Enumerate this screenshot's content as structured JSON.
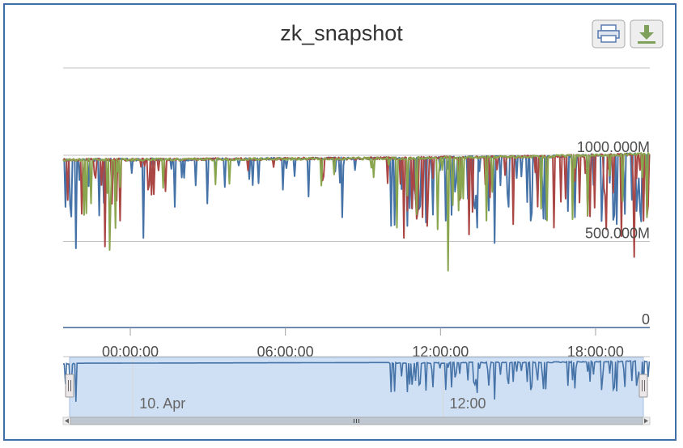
{
  "colors": {
    "series_blue": "#4572a7",
    "series_red": "#aa4643",
    "series_green": "#89a54e",
    "navigator_fill": "#c8daf2",
    "frame_border": "#3f6fa8"
  },
  "icons": {
    "print": "print-icon",
    "download": "download-icon"
  },
  "chart_data": {
    "type": "line",
    "title": "zk_snapshot",
    "xlabel": "",
    "ylabel": "",
    "ylim": [
      0,
      1000
    ],
    "y_unit": "M",
    "y_ticks": [
      {
        "value": 0,
        "label": "0"
      },
      {
        "value": 500,
        "label": "500.000M"
      },
      {
        "value": 1000,
        "label": "1000.000M"
      }
    ],
    "x_range_hours": [
      -2.6,
      20.1
    ],
    "x_ticks": [
      {
        "hour": 0,
        "label": "00:00:00"
      },
      {
        "hour": 6,
        "label": "06:00:00"
      },
      {
        "hour": 12,
        "label": "12:00:00"
      },
      {
        "hour": 18,
        "label": "18:00:00"
      }
    ],
    "grid": true,
    "legend": "none",
    "baseline": [
      {
        "hour": -2.6,
        "value": 980
      },
      {
        "hour": 4,
        "value": 985
      },
      {
        "hour": 10,
        "value": 990
      },
      {
        "hour": 16,
        "value": 1000
      },
      {
        "hour": 20.1,
        "value": 1015
      }
    ],
    "series": [
      {
        "color": "#4572a7",
        "dips": [
          {
            "hour": -2.5,
            "value": 700
          },
          {
            "hour": -2.1,
            "value": 460
          },
          {
            "hour": -1.6,
            "value": 820
          },
          {
            "hour": -1.2,
            "value": 650
          },
          {
            "hour": -0.7,
            "value": 740
          },
          {
            "hour": 0.5,
            "value": 520
          },
          {
            "hour": 1.7,
            "value": 700
          },
          {
            "hour": 3.0,
            "value": 720
          },
          {
            "hour": 5.9,
            "value": 800
          },
          {
            "hour": 6.9,
            "value": 760
          },
          {
            "hour": 8.2,
            "value": 640
          },
          {
            "hour": 10.1,
            "value": 590
          },
          {
            "hour": 10.9,
            "value": 690
          },
          {
            "hour": 12.2,
            "value": 620
          },
          {
            "hour": 13.4,
            "value": 580
          },
          {
            "hour": 14.1,
            "value": 490
          },
          {
            "hour": 15.5,
            "value": 620
          },
          {
            "hour": 17.2,
            "value": 640
          },
          {
            "hour": 18.8,
            "value": 600
          },
          {
            "hour": 19.7,
            "value": 680
          }
        ]
      },
      {
        "color": "#aa4643",
        "dips": [
          {
            "hour": -2.4,
            "value": 740
          },
          {
            "hour": -1.9,
            "value": 660
          },
          {
            "hour": -1.0,
            "value": 470
          },
          {
            "hour": -0.4,
            "value": 620
          },
          {
            "hour": 10.6,
            "value": 520
          },
          {
            "hour": 11.3,
            "value": 640
          },
          {
            "hour": 13.1,
            "value": 540
          },
          {
            "hour": 14.8,
            "value": 600
          },
          {
            "hour": 16.4,
            "value": 580
          },
          {
            "hour": 18.4,
            "value": 570
          },
          {
            "hour": 19.0,
            "value": 530
          },
          {
            "hour": 19.5,
            "value": 410
          },
          {
            "hour": 20.0,
            "value": 650
          }
        ]
      },
      {
        "color": "#89a54e",
        "dips": [
          {
            "hour": -1.5,
            "value": 720
          },
          {
            "hour": -0.8,
            "value": 450
          },
          {
            "hour": 10.3,
            "value": 580
          },
          {
            "hour": 11.9,
            "value": 570
          },
          {
            "hour": 12.3,
            "value": 330
          },
          {
            "hour": 13.8,
            "value": 620
          },
          {
            "hour": 15.9,
            "value": 690
          },
          {
            "hour": 17.7,
            "value": 650
          },
          {
            "hour": 20.0,
            "value": 640
          }
        ]
      }
    ],
    "navigator": {
      "labels": [
        {
          "hour": 0.1,
          "label": "10. Apr"
        },
        {
          "hour": 12.1,
          "label": "12:00"
        }
      ],
      "flat_from_hour": 0,
      "flat_to_hour": 10
    }
  }
}
